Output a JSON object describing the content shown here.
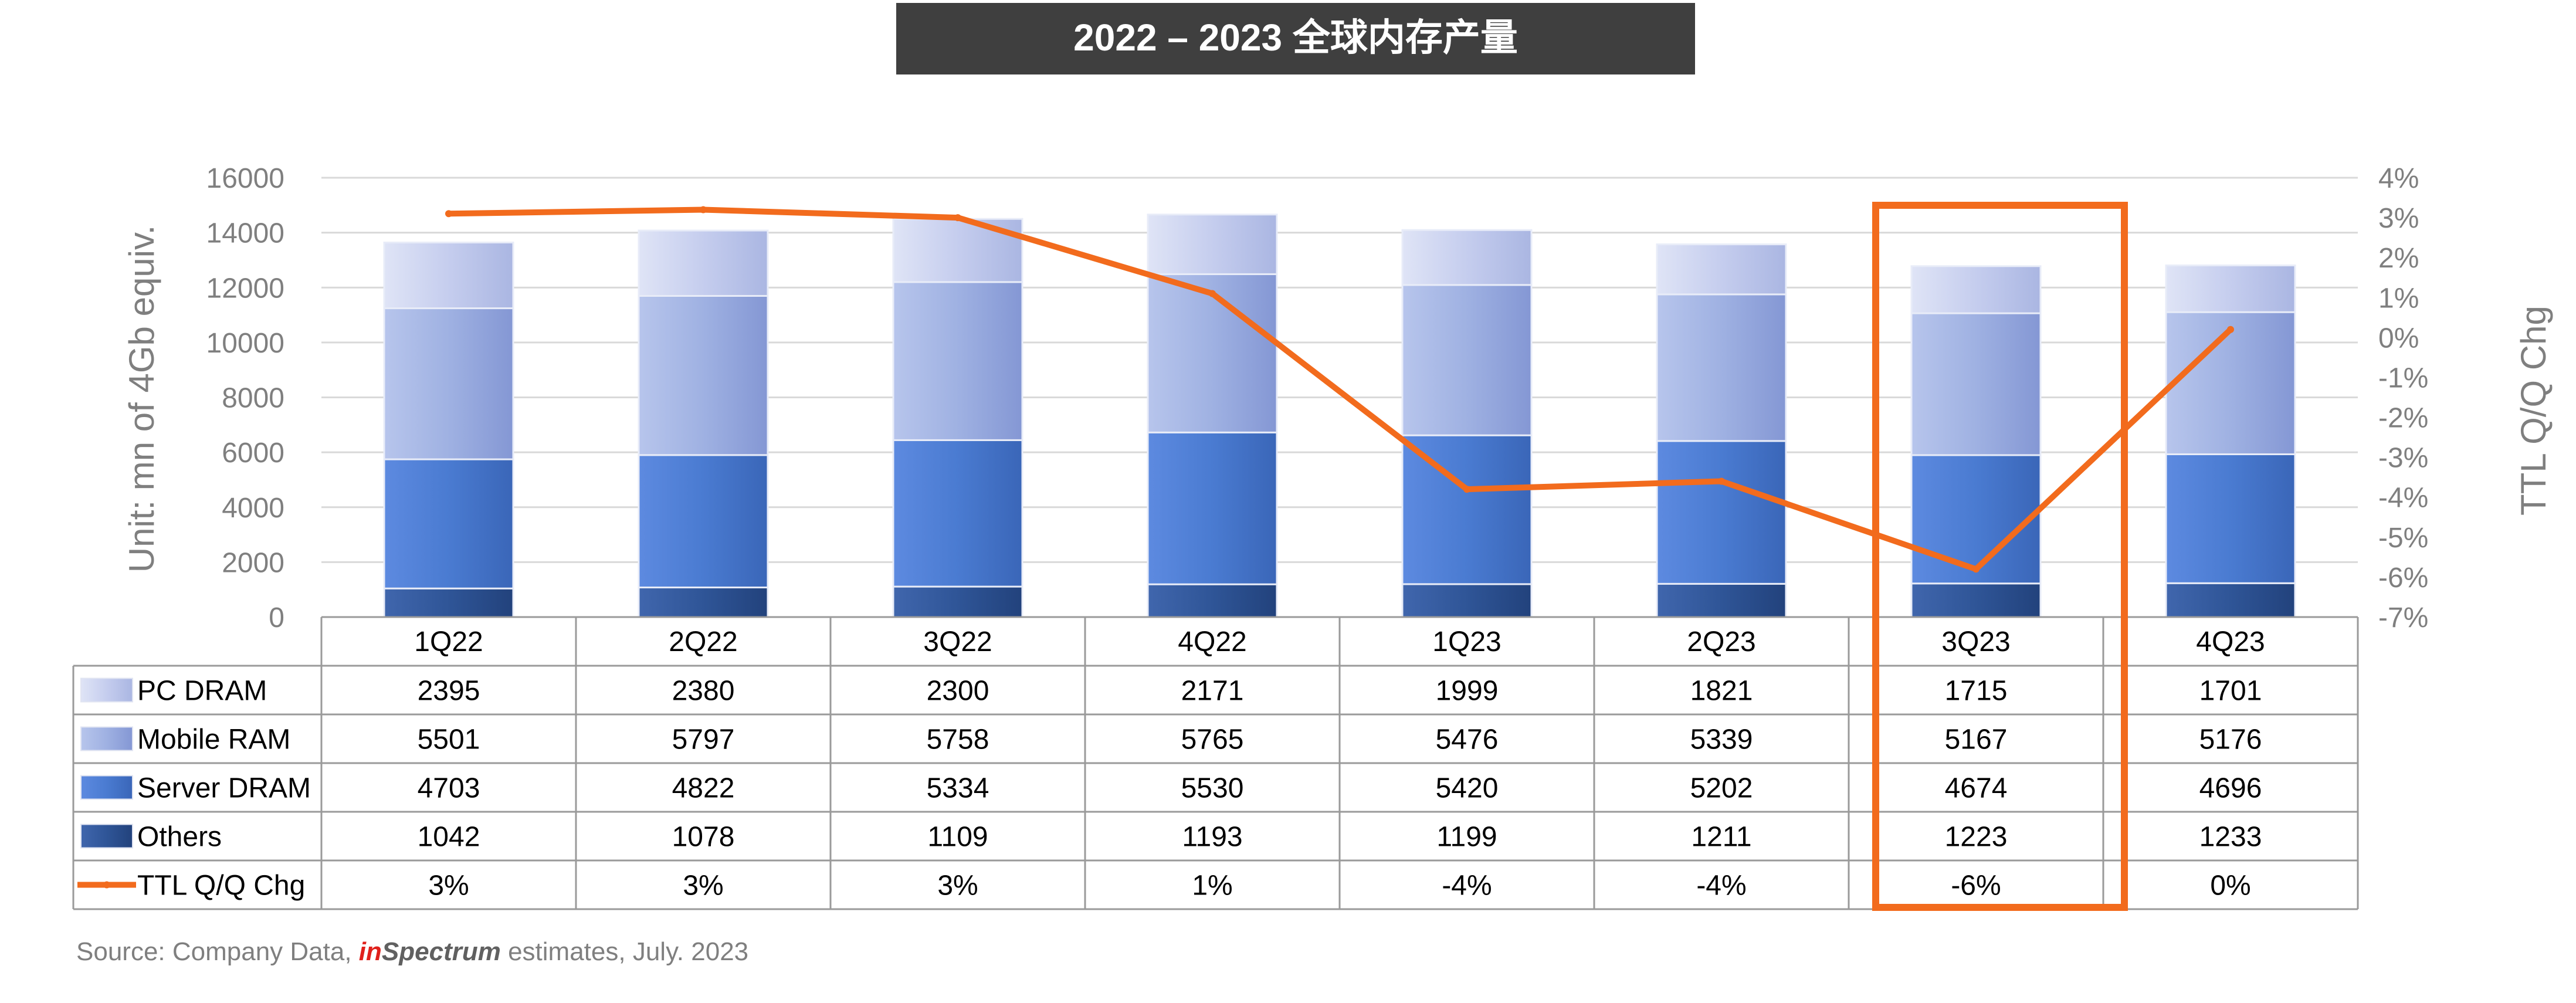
{
  "chart_data": {
    "type": "bar",
    "title": "2022 – 2023 全球内存产量",
    "ylabel": "Unit: mn of 4Gb equiv.",
    "y2label": "TTL Q/Q Chg",
    "ylim": [
      0,
      16000
    ],
    "y_ticks": [
      "0",
      "2000",
      "4000",
      "6000",
      "8000",
      "10000",
      "12000",
      "14000",
      "16000"
    ],
    "y2lim": [
      -7,
      4
    ],
    "y2_ticks": [
      "-7%",
      "-6%",
      "-5%",
      "-4%",
      "-3%",
      "-2%",
      "-1%",
      "0%",
      "1%",
      "2%",
      "3%",
      "4%"
    ],
    "categories": [
      "1Q22",
      "2Q22",
      "3Q22",
      "4Q22",
      "1Q23",
      "2Q23",
      "3Q23",
      "4Q23"
    ],
    "stacked": true,
    "series": [
      {
        "name": "PC DRAM",
        "color": "#c5cdee",
        "values": [
          2395,
          2380,
          2300,
          2171,
          1999,
          1821,
          1715,
          1701
        ]
      },
      {
        "name": "Mobile RAM",
        "color": "#9fb1e2",
        "values": [
          5501,
          5797,
          5758,
          5765,
          5476,
          5339,
          5167,
          5176
        ]
      },
      {
        "name": "Server DRAM",
        "color": "#4a7bd1",
        "values": [
          4703,
          4822,
          5334,
          5530,
          5420,
          5202,
          4674,
          4696
        ]
      },
      {
        "name": "Others",
        "color": "#2f5597",
        "values": [
          1042,
          1078,
          1109,
          1193,
          1199,
          1211,
          1223,
          1233
        ]
      }
    ],
    "line_series": {
      "name": "TTL Q/Q Chg",
      "color": "#f26b1d",
      "axis": "right",
      "values": [
        3.1,
        3.2,
        3.0,
        1.1,
        -3.8,
        -3.6,
        -5.8,
        0.2
      ],
      "labels": [
        "3%",
        "3%",
        "3%",
        "1%",
        "-4%",
        "-4%",
        "-6%",
        "0%"
      ]
    },
    "highlight_category": "3Q23",
    "legend_placement": "data-table-left"
  },
  "source": {
    "prefix": "Source: Company Data, ",
    "brand_red": "in",
    "brand_gray": "Spectrum",
    "suffix": " estimates, July. 2023"
  }
}
